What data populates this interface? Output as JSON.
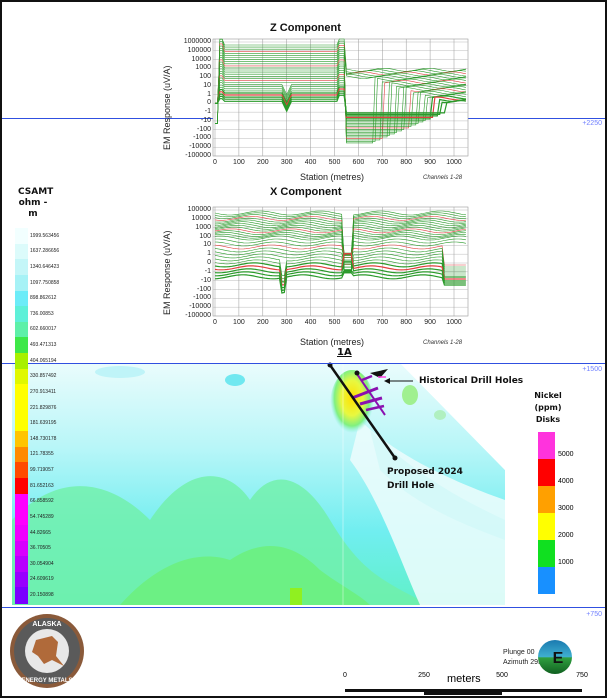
{
  "z_chart": {
    "title": "Z Component",
    "ylabel": "EM Response (uV/A)",
    "xlabel": "Station (metres)",
    "channels": "Channels 1-28",
    "yticks": [
      "1000000",
      "100000",
      "10000",
      "1000",
      "100",
      "10",
      "1",
      "0",
      "-1",
      "-10",
      "-100",
      "-1000",
      "-10000",
      "-100000"
    ],
    "xticks": [
      "0",
      "100",
      "200",
      "300",
      "400",
      "500",
      "600",
      "700",
      "800",
      "900",
      "1000"
    ]
  },
  "x_chart": {
    "title": "X Component",
    "ylabel": "EM Response (uV/A)",
    "xlabel": "Station (metres)",
    "channels": "Channels 1-28",
    "yticks": [
      "100000",
      "10000",
      "1000",
      "100",
      "10",
      "1",
      "0",
      "-1",
      "-10",
      "-100",
      "-1000",
      "-10000",
      "-100000"
    ],
    "xticks": [
      "0",
      "100",
      "200",
      "300",
      "400",
      "500",
      "600",
      "700",
      "800",
      "900",
      "1000"
    ]
  },
  "elevations": [
    "+2250",
    "+1500",
    "+750"
  ],
  "csamt_legend": {
    "title_lines": [
      "CSAMT",
      "ohm -",
      "m"
    ],
    "labels": [
      "1999.563456",
      "1637.286656",
      "1340.646423",
      "1097.750858",
      "898.862612",
      "736.00853",
      "602.660017",
      "493.471313",
      "404.065194",
      "330.857492",
      "270.913411",
      "221.829876",
      "181.639195",
      "148.730178",
      "121.78355",
      "99.719057",
      "81.652163",
      "66.858592",
      "54.745289",
      "44.82665",
      "36.70505",
      "30.054904",
      "24.609619",
      "20.150898"
    ],
    "colors": [
      "#f2ffff",
      "#dcfbfb",
      "#c4f6f8",
      "#a6f2f6",
      "#6cecf8",
      "#5ef0d8",
      "#5ef0a8",
      "#3ee848",
      "#a8f000",
      "#e0f800",
      "#ffff00",
      "#ffff00",
      "#ffff00",
      "#ffc400",
      "#ff8a00",
      "#ff4a00",
      "#ff0000",
      "#ff00ff",
      "#ff00ff",
      "#f000ff",
      "#d800ff",
      "#b800ff",
      "#9800ff",
      "#7a00ff"
    ]
  },
  "section": {
    "hole_label": "1A",
    "historical_label": "Historical Drill Holes",
    "proposed_label_lines": [
      "Proposed 2024",
      "Drill Hole"
    ]
  },
  "nickel_legend": {
    "title_lines": [
      "Nickel",
      "(ppm)",
      "Disks"
    ],
    "labels": [
      "5000",
      "4000",
      "3000",
      "2000",
      "1000"
    ],
    "colors": [
      "#ff33dd",
      "#ff0000",
      "#ffa000",
      "#ffff00",
      "#10e020",
      "#1890ff"
    ]
  },
  "logo": {
    "text": "ALASKA ENERGY METALS"
  },
  "orientation": {
    "plunge": "Plunge 00",
    "azimuth": "Azimuth 295",
    "compass_letter": "E"
  },
  "scale_bar": {
    "ticks": [
      "0",
      "250",
      "500",
      "750"
    ],
    "unit": "meters"
  }
}
